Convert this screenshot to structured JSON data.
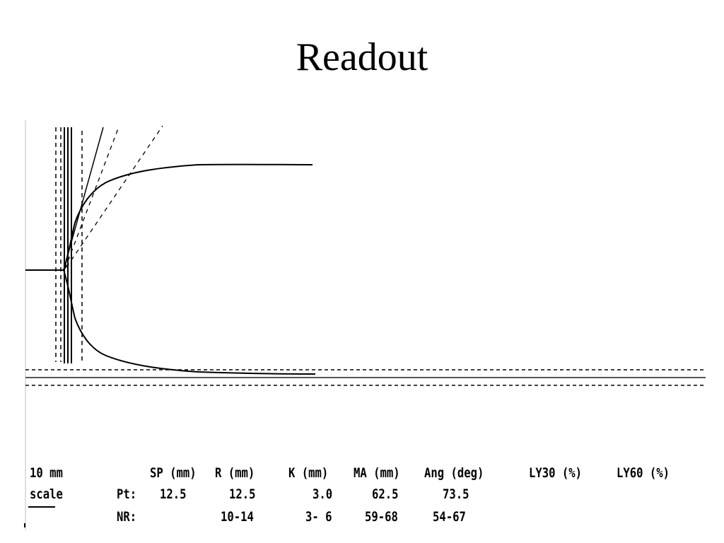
{
  "slide": {
    "title": "Readout"
  },
  "readout": {
    "scale_line1": "10 mm",
    "scale_line2": "scale",
    "headers": [
      "SP (mm)",
      "R (mm)",
      "K (mm)",
      "MA (mm)",
      "Ang (deg)",
      "LY30 (%)",
      "LY60 (%)"
    ],
    "rows": [
      {
        "label": "Pt:",
        "values": [
          "12.5",
          "12.5",
          "3.0",
          "62.5",
          "73.5",
          "",
          ""
        ]
      },
      {
        "label": "NR:",
        "values": [
          "",
          "10-14",
          "3- 6",
          "59-68",
          "54-67",
          "",
          ""
        ]
      }
    ]
  },
  "chart_data": {
    "type": "line",
    "title": "",
    "xlabel": "",
    "ylabel": "",
    "series": [
      {
        "values": [
          0,
          12.5,
          24.5,
          40,
          52,
          58,
          61,
          62.5,
          62.5
        ]
      }
    ],
    "x": [
      0,
      12.5,
      15.5,
      20,
      25,
      30,
      40,
      50,
      60
    ],
    "summary": {
      "sp_mm": 12.5,
      "r_mm": 12.5,
      "k_mm": 3.0,
      "ma_mm": 62.5,
      "angle_deg": 73.5
    },
    "grid": false
  },
  "colors": {
    "ink": "#000000",
    "background": "#ffffff"
  }
}
